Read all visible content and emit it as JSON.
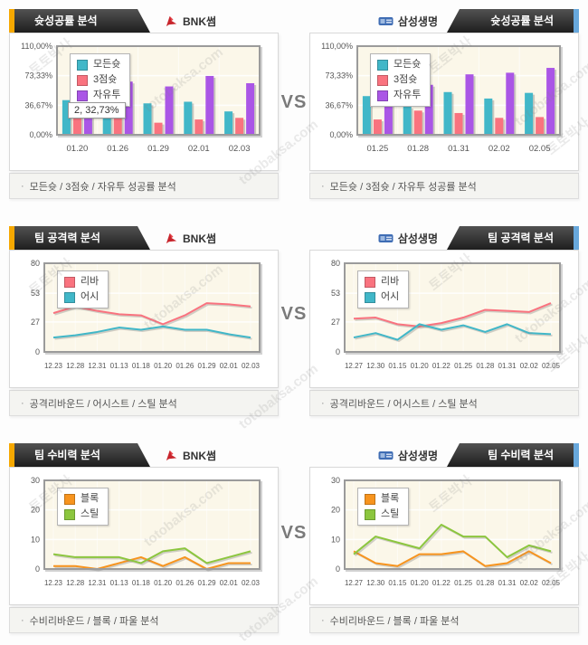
{
  "page": {
    "vs_label": "VS",
    "footer_bullet": "·"
  },
  "watermark": {
    "brand": "토토박사",
    "site": "totobaksa.com"
  },
  "theme": {
    "accent_left": "#f6a800",
    "accent_right": "#68a8dc",
    "tab_dark": "#1e1e1e",
    "plot_bg": "#fbf7e9",
    "plot_border": "#9b9b9b"
  },
  "panels": [
    {
      "side": "left",
      "title": "슛성공률 분석",
      "team": "BNK썸",
      "team_icon": "bnk-logo",
      "footer": "모든슛 / 3점슛 / 자유투 성공률 분석",
      "chart": 0
    },
    {
      "side": "right",
      "title": "슛성공률 분석",
      "team": "삼성생명",
      "team_icon": "samsung-logo",
      "footer": "모든슛 / 3점슛 / 자유투 성공률 분석",
      "chart": 1
    },
    {
      "side": "left",
      "title": "팀 공격력 분석",
      "team": "BNK썸",
      "team_icon": "bnk-logo",
      "footer": "공격리바운드 / 어시스트 / 스틸 분석",
      "chart": 2
    },
    {
      "side": "right",
      "title": "팀 공격력 분석",
      "team": "삼성생명",
      "team_icon": "samsung-logo",
      "footer": "공격리바운드 / 어시스트 / 스틸 분석",
      "chart": 3
    },
    {
      "side": "left",
      "title": "팀 수비력 분석",
      "team": "BNK썸",
      "team_icon": "bnk-logo",
      "footer": "수비리바운드 / 블록 / 파울 분석",
      "chart": 4
    },
    {
      "side": "right",
      "title": "팀 수비력 분석",
      "team": "삼성생명",
      "team_icon": "samsung-logo",
      "footer": "수비리바운드 / 블록 / 파울 분석",
      "chart": 5
    }
  ],
  "chart_data": [
    {
      "type": "bar",
      "title": "BNK썸 슛성공률",
      "categories": [
        "01.20",
        "01.26",
        "01.29",
        "02.01",
        "02.03"
      ],
      "series": [
        {
          "name": "모든슛",
          "color": "#41b7c8",
          "values": [
            43,
            33,
            39,
            41,
            29
          ]
        },
        {
          "name": "3점슛",
          "color": "#f9737f",
          "values": [
            57,
            32.73,
            15,
            19,
            21
          ]
        },
        {
          "name": "자유투",
          "color": "#aa56e6",
          "values": [
            60,
            66,
            60,
            73,
            64
          ]
        }
      ],
      "ylim": [
        0,
        110
      ],
      "yticks": [
        {
          "v": 0,
          "label": "0,00%"
        },
        {
          "v": 36.67,
          "label": "36,67%"
        },
        {
          "v": 73.33,
          "label": "73,33%"
        },
        {
          "v": 110,
          "label": "110,00%"
        }
      ],
      "legend_position": "top-left",
      "grid": true,
      "tooltip": {
        "text": "2, 32,73%"
      }
    },
    {
      "type": "bar",
      "title": "삼성생명 슛성공률",
      "categories": [
        "01.25",
        "01.28",
        "01.31",
        "02.02",
        "02.05"
      ],
      "series": [
        {
          "name": "모든슛",
          "color": "#41b7c8",
          "values": [
            48,
            35,
            53,
            45,
            52
          ]
        },
        {
          "name": "3점슛",
          "color": "#f9737f",
          "values": [
            19,
            30,
            27,
            21,
            22
          ]
        },
        {
          "name": "자유투",
          "color": "#aa56e6",
          "values": [
            57,
            62,
            75,
            77,
            83
          ]
        }
      ],
      "ylim": [
        0,
        110
      ],
      "yticks": [
        {
          "v": 0,
          "label": "0,00%"
        },
        {
          "v": 36.67,
          "label": "36,67%"
        },
        {
          "v": 73.33,
          "label": "73,33%"
        },
        {
          "v": 110,
          "label": "110,00%"
        }
      ],
      "legend_position": "top-left",
      "grid": true
    },
    {
      "type": "line",
      "title": "BNK썸 팀 공격력",
      "categories": [
        "12.23",
        "12.28",
        "12.31",
        "01.13",
        "01.18",
        "01.20",
        "01.26",
        "01.29",
        "02.01",
        "02.03"
      ],
      "series": [
        {
          "name": "리바",
          "color": "#f9737f",
          "values": [
            35,
            41,
            37,
            34,
            33,
            25,
            33,
            44,
            43,
            41
          ]
        },
        {
          "name": "어시",
          "color": "#41b7c8",
          "values": [
            13,
            15,
            18,
            22,
            20,
            23,
            20,
            20,
            16,
            13
          ]
        }
      ],
      "ylim": [
        0,
        80
      ],
      "yticks": [
        {
          "v": 0,
          "label": "0"
        },
        {
          "v": 27,
          "label": "27"
        },
        {
          "v": 53,
          "label": "53"
        },
        {
          "v": 80,
          "label": "80"
        }
      ],
      "legend_position": "top-left",
      "grid": true
    },
    {
      "type": "line",
      "title": "삼성생명 팀 공격력",
      "categories": [
        "12.27",
        "12.30",
        "01.15",
        "01.20",
        "01.22",
        "01.25",
        "01.28",
        "01.31",
        "02.02",
        "02.05"
      ],
      "series": [
        {
          "name": "리바",
          "color": "#f9737f",
          "values": [
            30,
            31,
            25,
            23,
            26,
            31,
            38,
            37,
            36,
            44
          ]
        },
        {
          "name": "어시",
          "color": "#41b7c8",
          "values": [
            13,
            17,
            11,
            25,
            20,
            24,
            18,
            25,
            17,
            16
          ]
        }
      ],
      "ylim": [
        0,
        80
      ],
      "yticks": [
        {
          "v": 0,
          "label": "0"
        },
        {
          "v": 27,
          "label": "27"
        },
        {
          "v": 53,
          "label": "53"
        },
        {
          "v": 80,
          "label": "80"
        }
      ],
      "legend_position": "top-left",
      "grid": true
    },
    {
      "type": "line",
      "title": "BNK썸 팀 수비력",
      "categories": [
        "12.23",
        "12.28",
        "12.31",
        "01.13",
        "01.18",
        "01.20",
        "01.26",
        "01.29",
        "02.01",
        "02.03"
      ],
      "series": [
        {
          "name": "블록",
          "color": "#f7941e",
          "values": [
            1,
            1,
            0,
            2,
            4,
            1,
            4,
            0,
            2,
            2
          ]
        },
        {
          "name": "스틸",
          "color": "#8cc63e",
          "values": [
            5,
            4,
            4,
            4,
            2,
            6,
            7,
            2,
            4,
            6
          ]
        }
      ],
      "ylim": [
        0,
        30
      ],
      "yticks": [
        {
          "v": 0,
          "label": "0"
        },
        {
          "v": 10,
          "label": "10"
        },
        {
          "v": 20,
          "label": "20"
        },
        {
          "v": 30,
          "label": "30"
        }
      ],
      "legend_position": "top-left",
      "grid": true
    },
    {
      "type": "line",
      "title": "삼성생명 팀 수비력",
      "categories": [
        "12.27",
        "12.30",
        "01.15",
        "01.20",
        "01.22",
        "01.25",
        "01.28",
        "01.31",
        "02.02",
        "02.05"
      ],
      "series": [
        {
          "name": "블록",
          "color": "#f7941e",
          "values": [
            6,
            2,
            1,
            5,
            5,
            6,
            1,
            2,
            6,
            2
          ]
        },
        {
          "name": "스틸",
          "color": "#8cc63e",
          "values": [
            5,
            11,
            9,
            7,
            15,
            11,
            11,
            4,
            8,
            6
          ]
        }
      ],
      "ylim": [
        0,
        30
      ],
      "yticks": [
        {
          "v": 0,
          "label": "0"
        },
        {
          "v": 10,
          "label": "10"
        },
        {
          "v": 20,
          "label": "20"
        },
        {
          "v": 30,
          "label": "30"
        }
      ],
      "legend_position": "top-left",
      "grid": true
    }
  ]
}
